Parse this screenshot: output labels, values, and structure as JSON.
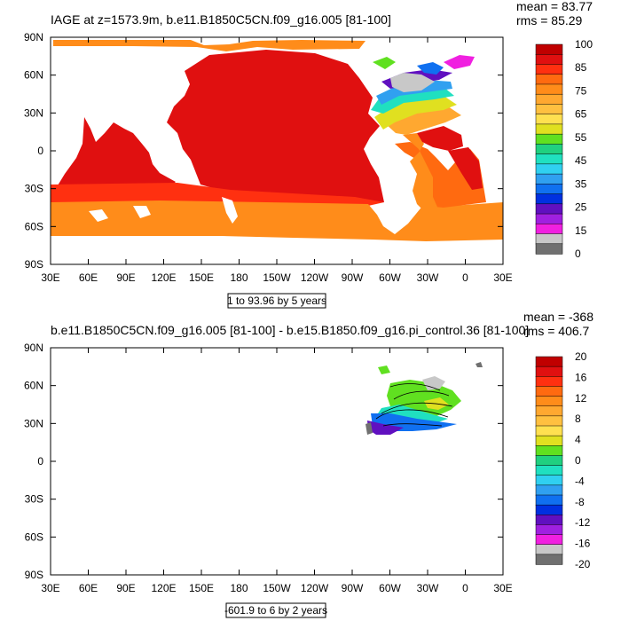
{
  "chart_data": [
    {
      "type": "heatmap",
      "title": "IAGE at z=1573.9m, b.e11.B1850C5CN.f09_g16.005 [81-100]",
      "stats": {
        "mean": "mean = 83.77",
        "rms": "rms = 85.29"
      },
      "x_ticks": [
        "30E",
        "60E",
        "90E",
        "120E",
        "150E",
        "180",
        "150W",
        "120W",
        "90W",
        "60W",
        "30W",
        "0",
        "30E"
      ],
      "y_ticks": [
        "90N",
        "60N",
        "30N",
        "0",
        "30S",
        "60S",
        "90S"
      ],
      "xlim": [
        30,
        390
      ],
      "ylim": [
        -90,
        90
      ],
      "contour_info": "1 to 93.96 by 5 years",
      "colorbar_labels": [
        "100",
        "85",
        "75",
        "65",
        "55",
        "45",
        "35",
        "25",
        "15",
        "0"
      ],
      "colorbar_colors": [
        "#c00000",
        "#e01010",
        "#ff3010",
        "#ff6a10",
        "#ff8c1a",
        "#ffa830",
        "#ffc040",
        "#ffe050",
        "#e0e020",
        "#60e020",
        "#20d080",
        "#20e0c0",
        "#30d0f0",
        "#30a0f0",
        "#1070f0",
        "#0030e0",
        "#6010c0",
        "#a020e0",
        "#f020e0",
        "#c8c8c8",
        "#707070"
      ]
    },
    {
      "type": "heatmap",
      "title": "b.e11.B1850C5CN.f09_g16.005 [81-100] - b.e15.B1850.f09_g16.pi_control.36 [81-100]",
      "stats": {
        "mean": "mean = -368",
        "rms": "rms = 406.7"
      },
      "x_ticks": [
        "30E",
        "60E",
        "90E",
        "120E",
        "150E",
        "180",
        "150W",
        "120W",
        "90W",
        "60W",
        "30W",
        "0",
        "30E"
      ],
      "y_ticks": [
        "90N",
        "60N",
        "30N",
        "0",
        "30S",
        "60S",
        "90S"
      ],
      "xlim": [
        30,
        390
      ],
      "ylim": [
        -90,
        90
      ],
      "contour_info": "-601.9 to 6 by 2 years",
      "colorbar_labels": [
        "20",
        "16",
        "12",
        "8",
        "4",
        "0",
        "-4",
        "-8",
        "-12",
        "-16",
        "-20"
      ],
      "colorbar_colors": [
        "#c00000",
        "#e01010",
        "#ff3010",
        "#ff6a10",
        "#ff8c1a",
        "#ffa830",
        "#ffc040",
        "#ffe050",
        "#e0e020",
        "#60e020",
        "#20d080",
        "#20e0c0",
        "#30d0f0",
        "#30a0f0",
        "#1070f0",
        "#0030e0",
        "#6010c0",
        "#a020e0",
        "#f020e0",
        "#c8c8c8",
        "#707070"
      ]
    }
  ]
}
